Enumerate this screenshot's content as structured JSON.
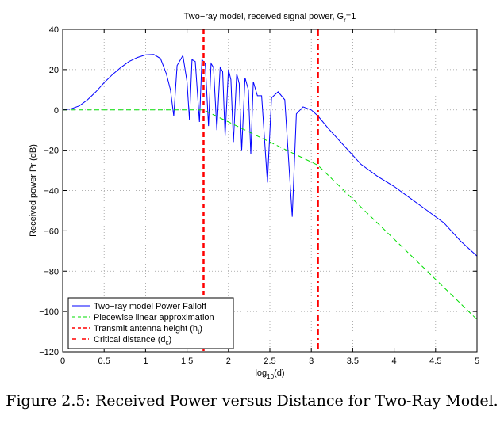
{
  "chart_data": {
    "type": "line",
    "title": "Two−ray model, received signal power, G",
    "title_sub": "r",
    "title_suffix": "=1",
    "xlabel": "log",
    "xlabel_sub": "10",
    "xlabel_suffix": "(d)",
    "ylabel": "Received power Pr (dB)",
    "xlim": [
      0,
      5
    ],
    "ylim": [
      -120,
      40
    ],
    "xticks": [
      0,
      0.5,
      1,
      1.5,
      2,
      2.5,
      3,
      3.5,
      4,
      4.5,
      5
    ],
    "xtick_labels": [
      "0",
      "0.5",
      "1",
      "1.5",
      "2",
      "2.5",
      "3",
      "3.5",
      "4",
      "4.5",
      "5"
    ],
    "yticks": [
      -120,
      -100,
      -80,
      -60,
      -40,
      -20,
      0,
      20,
      40
    ],
    "ytick_labels": [
      "−120",
      "−100",
      "−80",
      "−60",
      "−40",
      "−20",
      "0",
      "20",
      "40"
    ],
    "grid": true,
    "legend_position": "bottom-left",
    "series": [
      {
        "name": "Two−ray model Power Falloff",
        "color": "#0000ff",
        "style": "solid",
        "x": [
          0,
          0.1,
          0.2,
          0.3,
          0.4,
          0.5,
          0.6,
          0.7,
          0.8,
          0.9,
          1.0,
          1.1,
          1.18,
          1.25,
          1.3,
          1.34,
          1.38,
          1.45,
          1.5,
          1.53,
          1.56,
          1.6,
          1.65,
          1.68,
          1.72,
          1.76,
          1.79,
          1.82,
          1.86,
          1.9,
          1.93,
          1.96,
          2.0,
          2.03,
          2.06,
          2.1,
          2.13,
          2.16,
          2.2,
          2.24,
          2.27,
          2.3,
          2.35,
          2.4,
          2.47,
          2.52,
          2.6,
          2.68,
          2.77,
          2.82,
          2.9,
          3.0,
          3.08,
          3.2,
          3.4,
          3.6,
          3.8,
          4.0,
          4.2,
          4.4,
          4.6,
          4.8,
          5.0
        ],
        "values": [
          0,
          0.5,
          2,
          5,
          9,
          13.5,
          17.5,
          21,
          24,
          26,
          27.3,
          27.5,
          25.5,
          18,
          10,
          -3,
          22,
          27,
          14,
          -5,
          25,
          24,
          -6,
          25,
          23,
          -8,
          23,
          21,
          -10,
          21,
          19,
          -13,
          20,
          15,
          -16,
          18,
          13,
          -20,
          16,
          10,
          -22,
          14,
          7,
          7,
          -36,
          6,
          9,
          5,
          -53,
          -2,
          1.5,
          0,
          -3,
          -9,
          -18,
          -27,
          -33,
          -38,
          -44,
          -50,
          -56,
          -65,
          -72.5
        ]
      },
      {
        "name": "Piecewise linear approximation",
        "color": "#00dd00",
        "style": "dashed",
        "x": [
          0,
          1.7,
          3.08,
          5
        ],
        "values": [
          0,
          0,
          -27.5,
          -104
        ]
      },
      {
        "name": "Transmit antenna height (h",
        "name_sub": "t",
        "name_suffix": ")",
        "color": "#ff0000",
        "style": "dashed",
        "vline_x": 1.7
      },
      {
        "name": "Critical distance (d",
        "name_sub": "c",
        "name_suffix": ")",
        "color": "#ff0000",
        "style": "dashdot",
        "vline_x": 3.08
      }
    ]
  },
  "caption": "Figure 2.5: Received Power versus Distance for Two-Ray Model."
}
